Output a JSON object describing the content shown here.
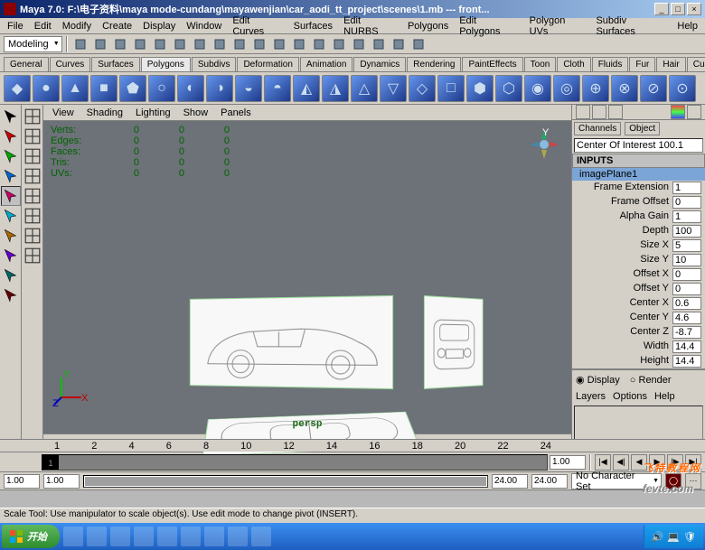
{
  "window": {
    "title": "Maya 7.0: F:\\电子资料\\maya mode-cundang\\mayawenjian\\car_aodi_tt_project\\scenes\\1.mb  ---   front...",
    "minimize": "_",
    "maximize": "□",
    "close": "×"
  },
  "menubar": [
    "File",
    "Edit",
    "Modify",
    "Create",
    "Display",
    "Window",
    "Edit Curves",
    "Surfaces",
    "Edit NURBS",
    "Polygons",
    "Edit Polygons",
    "Polygon UVs",
    "Subdiv Surfaces",
    "Help"
  ],
  "mode_dropdown": "Modeling",
  "status_icons": [
    "new",
    "open",
    "save",
    "undo",
    "redo",
    "sel-hier",
    "sel-obj",
    "sel-comp",
    "snap-grid",
    "snap-curve",
    "snap-point",
    "snap-plane",
    "render",
    "ipr",
    "render-globals",
    "hypershade",
    "outliner",
    "sel"
  ],
  "shelf_tabs": [
    "General",
    "Curves",
    "Surfaces",
    "Polygons",
    "Subdivs",
    "Deformation",
    "Animation",
    "Dynamics",
    "Rendering",
    "PaintEffects",
    "Toon",
    "Cloth",
    "Fluids",
    "Fur",
    "Hair",
    "Custom"
  ],
  "shelf_active": "Polygons",
  "shelf_count": 24,
  "view_menu": [
    "View",
    "Shading",
    "Lighting",
    "Show",
    "Panels"
  ],
  "stats": [
    {
      "label": "Verts:",
      "v1": "0",
      "v2": "0",
      "v3": "0"
    },
    {
      "label": "Edges:",
      "v1": "0",
      "v2": "0",
      "v3": "0"
    },
    {
      "label": "Faces:",
      "v1": "0",
      "v2": "0",
      "v3": "0"
    },
    {
      "label": "Tris:",
      "v1": "0",
      "v2": "0",
      "v3": "0"
    },
    {
      "label": "UVs:",
      "v1": "0",
      "v2": "0",
      "v3": "0"
    }
  ],
  "viewport": {
    "camera_label": "persp",
    "bg_color": "#6d7178"
  },
  "channel_box": {
    "tabs": [
      "Channels",
      "Object"
    ],
    "node_name": "Center Of Interest  100.1",
    "section_inputs": "INPUTS",
    "selected": "imagePlane1",
    "attrs": [
      {
        "label": "Frame Extension",
        "val": "1"
      },
      {
        "label": "Frame Offset",
        "val": "0"
      },
      {
        "label": "Alpha Gain",
        "val": "1"
      },
      {
        "label": "Depth",
        "val": "100"
      },
      {
        "label": "Size X",
        "val": "5"
      },
      {
        "label": "Size Y",
        "val": "10"
      },
      {
        "label": "Offset X",
        "val": "0"
      },
      {
        "label": "Offset Y",
        "val": "0"
      },
      {
        "label": "Center X",
        "val": "0.6"
      },
      {
        "label": "Center Y",
        "val": "4.6"
      },
      {
        "label": "Center Z",
        "val": "-8.7"
      },
      {
        "label": "Width",
        "val": "14.4"
      },
      {
        "label": "Height",
        "val": "14.4"
      }
    ],
    "display_label": "Display",
    "render_label": "Render",
    "layers_menu": [
      "Layers",
      "Options",
      "Help"
    ]
  },
  "timeline": {
    "ticks": [
      "1",
      "2",
      "4",
      "6",
      "8",
      "10",
      "12",
      "14",
      "16",
      "18",
      "20",
      "22",
      "24"
    ],
    "current_frame": "1",
    "frame_field": "1.00",
    "start": "1.00",
    "range_start": "1.00",
    "range_end": "24.00",
    "end": "24.00",
    "charset": "No Character Set",
    "auto_key": "⊙"
  },
  "help_line": "Scale Tool: Use manipulator to scale object(s). Use edit mode to change pivot (INSERT).",
  "taskbar": {
    "start": "开始",
    "tray_time": "",
    "items": 9
  },
  "watermark": {
    "main": "飞特教程网",
    "sub": "fevte.com"
  }
}
